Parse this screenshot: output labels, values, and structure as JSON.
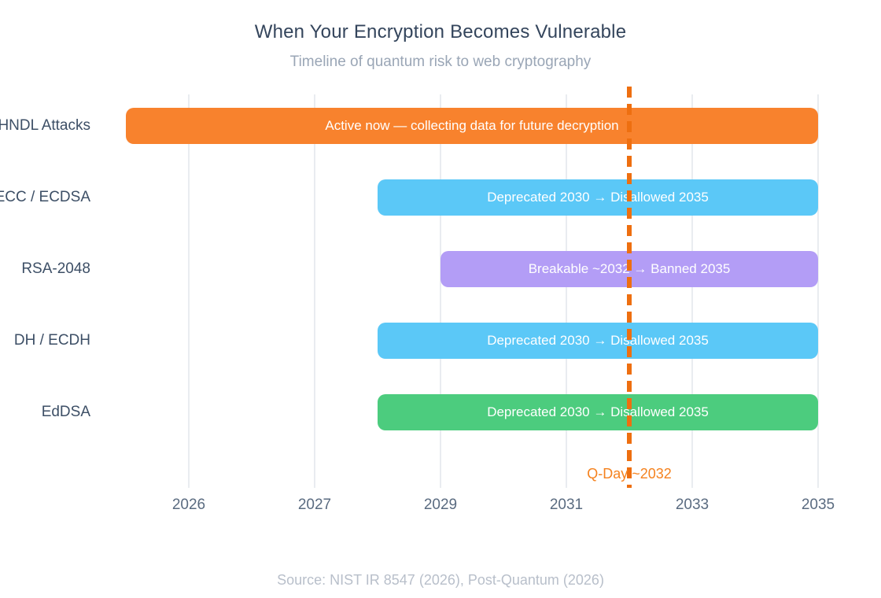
{
  "chart_data": {
    "type": "bar",
    "orientation": "horizontal-timeline",
    "title": "When Your Encryption Becomes Vulnerable",
    "subtitle": "Timeline of quantum risk to web cryptography",
    "source": "Source: NIST IR 8547 (2026), Post-Quantum (2026)",
    "x_ticks": [
      "2026",
      "2027",
      "2029",
      "2031",
      "2033",
      "2035"
    ],
    "x_range": [
      2025.5,
      2035
    ],
    "grid": true,
    "legend": "none",
    "rows": [
      {
        "label": "HNDL Attacks",
        "start": 2025.5,
        "end": 2035,
        "color": "#f8822d",
        "bar_label": "Active now — collecting data for future decryption"
      },
      {
        "label": "ECC / ECDSA",
        "start": 2028,
        "end": 2035,
        "color": "#5bc8f7",
        "bar_label": "Deprecated 2030 → Disallowed 2035"
      },
      {
        "label": "RSA-2048",
        "start": 2029,
        "end": 2035,
        "color": "#b39df6",
        "bar_label": "Breakable ~2032 → Banned 2035"
      },
      {
        "label": "DH / ECDH",
        "start": 2028,
        "end": 2035,
        "color": "#5bc8f7",
        "bar_label": "Deprecated 2030 → Disallowed 2035"
      },
      {
        "label": "EdDSA",
        "start": 2028,
        "end": 2035,
        "color": "#4ccc7e",
        "bar_label": "Deprecated 2030 → Disallowed 2035"
      }
    ],
    "qday_marker": {
      "x": 2032,
      "label": "Q-Day ~2032",
      "line_color": "#ee6f10",
      "label_color": "#f5821e",
      "line_style": "dashed"
    },
    "colors": {
      "title": "#34455c",
      "subtitle": "#9aa6b6",
      "row_label": "#3d4f66",
      "tick_label": "#5a6b80",
      "gridline": "#e9ecf0",
      "bar_text": "#ffffff",
      "source": "#b8bfca"
    }
  }
}
